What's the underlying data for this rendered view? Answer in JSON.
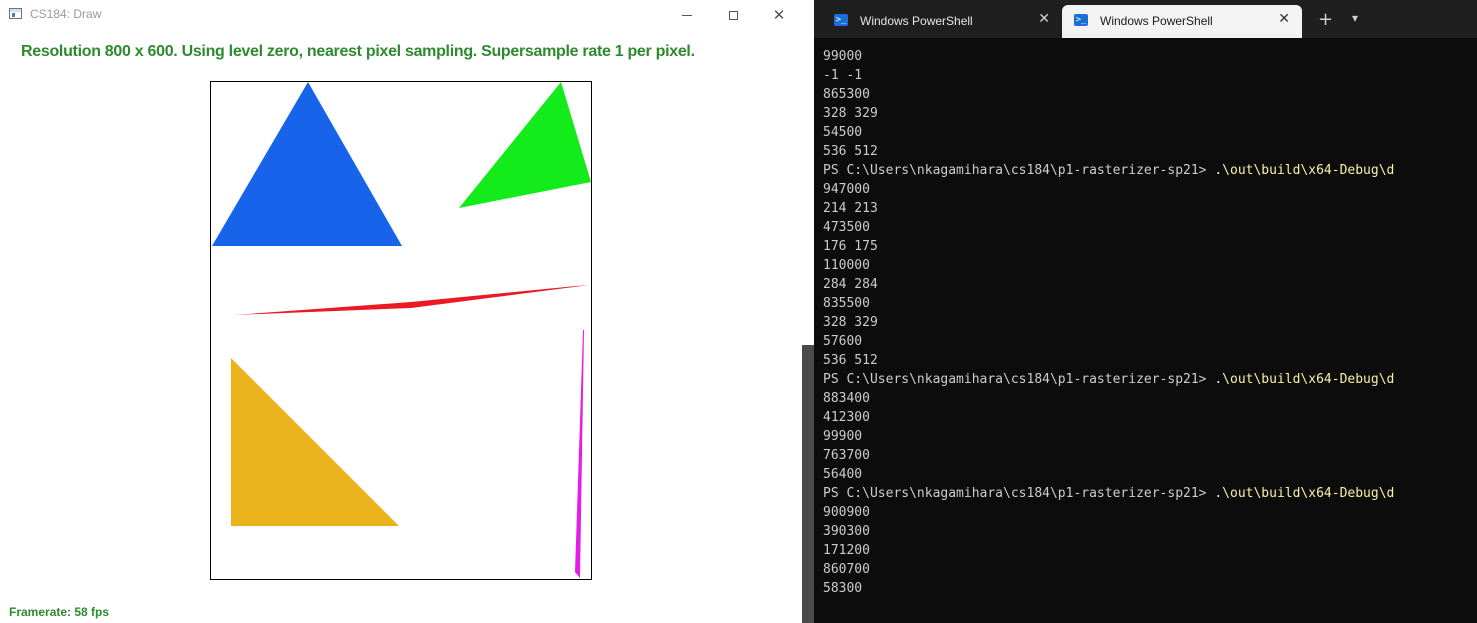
{
  "draw_window": {
    "title": "CS184: Draw",
    "status": "Resolution 800 x 600. Using level zero, nearest pixel sampling. Supersample rate 1 per pixel.",
    "framerate": "Framerate: 58 fps",
    "colors": {
      "status_text": "#2e8a2e",
      "blue_triangle": "#1764ea",
      "green_triangle": "#14eb1a",
      "red_sliver": "#ea1a22",
      "yellow_triangle": "#eab31c",
      "magenta_sliver": "#e41ee6"
    }
  },
  "terminal": {
    "tabs": [
      {
        "label": "Windows PowerShell",
        "active": false,
        "icon": "powershell-icon"
      },
      {
        "label": "Windows PowerShell",
        "active": true,
        "icon": "powershell-icon"
      }
    ],
    "prompt": "PS C:\\Users\\nkagamihara\\cs184\\p1-rasterizer-sp21> ",
    "command": ".\\out\\build\\x64-Debug\\d",
    "lines": [
      {
        "text": "99000"
      },
      {
        "text": "-1 -1"
      },
      {
        "text": "865300"
      },
      {
        "text": "328 329"
      },
      {
        "text": "54500"
      },
      {
        "text": "536 512"
      },
      {
        "prompt": true
      },
      {
        "text": "947000"
      },
      {
        "text": "214 213"
      },
      {
        "text": "473500"
      },
      {
        "text": "176 175"
      },
      {
        "text": "110000"
      },
      {
        "text": "284 284"
      },
      {
        "text": "835500"
      },
      {
        "text": "328 329"
      },
      {
        "text": "57600"
      },
      {
        "text": "536 512"
      },
      {
        "prompt": true
      },
      {
        "text": "883400"
      },
      {
        "text": "412300"
      },
      {
        "text": "99900"
      },
      {
        "text": "763700"
      },
      {
        "text": "56400"
      },
      {
        "prompt": true
      },
      {
        "text": "900900"
      },
      {
        "text": "390300"
      },
      {
        "text": "171200"
      },
      {
        "text": "860700"
      },
      {
        "text": "58300"
      }
    ]
  }
}
